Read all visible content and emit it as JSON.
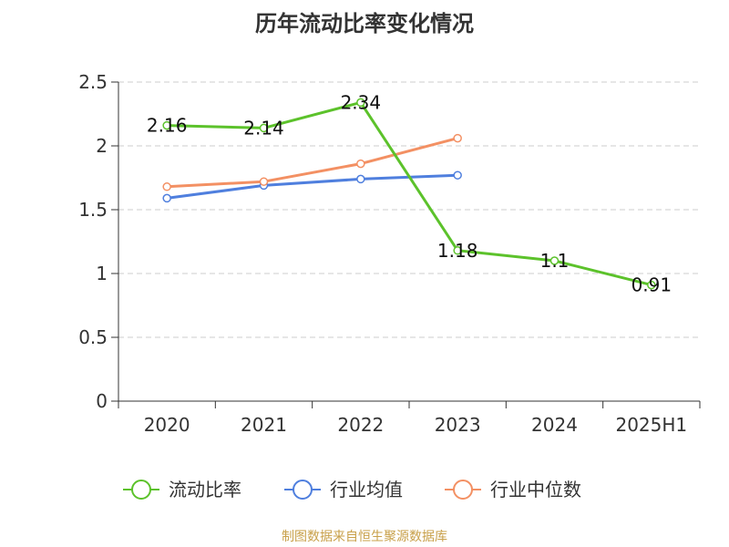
{
  "source_note": "制图数据来自恒生聚源数据库",
  "colors": {
    "source_text": "#c8a04a",
    "grid": "#cccccc",
    "axis": "#333333"
  },
  "chart_data": {
    "type": "line",
    "title": "历年流动比率变化情况",
    "xlabel": "",
    "ylabel": "",
    "categories": [
      "2020",
      "2021",
      "2022",
      "2023",
      "2024",
      "2025H1"
    ],
    "ylim": [
      0,
      2.5
    ],
    "yticks": [
      "0",
      "0.5",
      "1",
      "1.5",
      "2",
      "2.5"
    ],
    "grid": true,
    "legend_position": "bottom",
    "series": [
      {
        "name": "流动比率",
        "color": "#5cc22b",
        "values": [
          2.16,
          2.14,
          2.34,
          1.18,
          1.1,
          0.91
        ],
        "labels": [
          "2.16",
          "2.14",
          "2.34",
          "1.18",
          "1.1",
          "0.91"
        ]
      },
      {
        "name": "行业均值",
        "color": "#4f7fde",
        "values": [
          1.59,
          1.69,
          1.74,
          1.77,
          null,
          null
        ]
      },
      {
        "name": "行业中位数",
        "color": "#f39063",
        "values": [
          1.68,
          1.72,
          1.86,
          2.06,
          null,
          null
        ]
      }
    ]
  }
}
